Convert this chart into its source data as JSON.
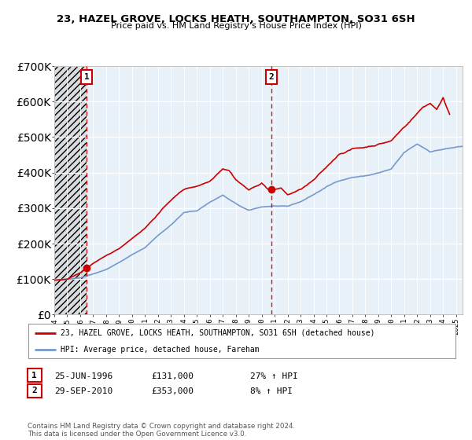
{
  "title": "23, HAZEL GROVE, LOCKS HEATH, SOUTHAMPTON, SO31 6SH",
  "subtitle": "Price paid vs. HM Land Registry's House Price Index (HPI)",
  "legend_line1": "23, HAZEL GROVE, LOCKS HEATH, SOUTHAMPTON, SO31 6SH (detached house)",
  "legend_line2": "HPI: Average price, detached house, Fareham",
  "purchase1_date": "25-JUN-1996",
  "purchase1_price": 131000,
  "purchase1_hpi": "27% ↑ HPI",
  "purchase2_date": "29-SEP-2010",
  "purchase2_price": 353000,
  "purchase2_hpi": "8% ↑ HPI",
  "purchase1_year": 1996.49,
  "purchase2_year": 2010.75,
  "footer": "Contains HM Land Registry data © Crown copyright and database right 2024.\nThis data is licensed under the Open Government Licence v3.0.",
  "line_color_red": "#cc0000",
  "line_color_blue": "#7799cc",
  "hatch_color": "#bbbbbb",
  "xlim": [
    1994,
    2025.5
  ],
  "ylim": [
    0,
    700000
  ],
  "plot_bg": "#e8f0f8",
  "fig_bg": "#ffffff"
}
